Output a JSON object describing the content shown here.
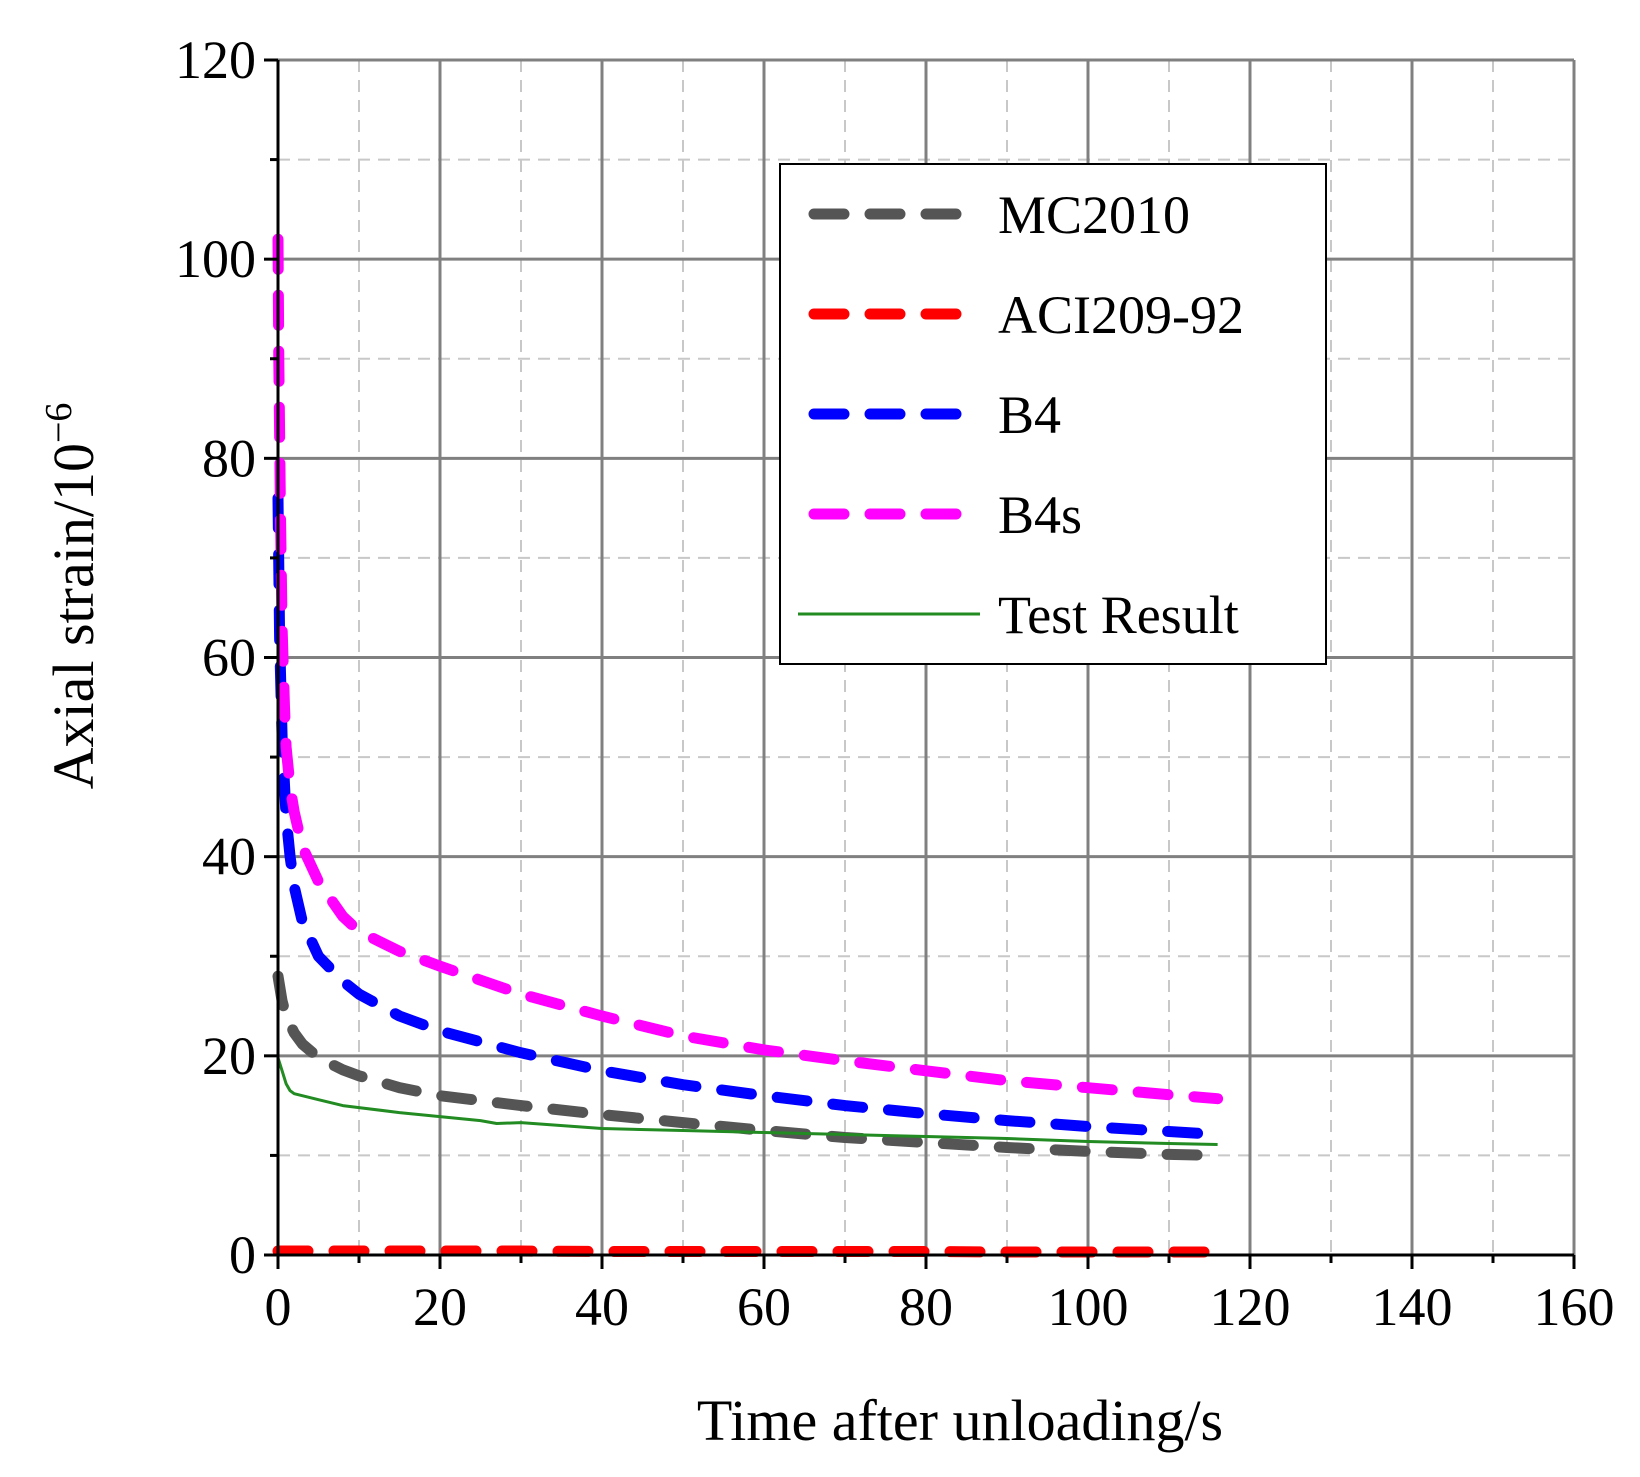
{
  "chart_data": {
    "type": "line",
    "title": "",
    "xlabel": "Time after unloading/s",
    "ylabel_base": "Axial strain/10",
    "ylabel_exp": "−6",
    "xlim": [
      0,
      160
    ],
    "ylim": [
      0,
      120
    ],
    "x_major_ticks": [
      0,
      20,
      40,
      60,
      80,
      100,
      120,
      140,
      160
    ],
    "x_minor_ticks": [
      10,
      30,
      50,
      70,
      90,
      110,
      130,
      150
    ],
    "y_major_ticks": [
      0,
      20,
      40,
      60,
      80,
      100,
      120
    ],
    "y_minor_ticks": [
      10,
      30,
      50,
      70,
      90,
      110
    ],
    "x_tick_labels": [
      "0",
      "20",
      "40",
      "60",
      "80",
      "100",
      "120",
      "140",
      "160"
    ],
    "y_tick_labels": [
      "0",
      "20",
      "40",
      "60",
      "80",
      "100",
      "120"
    ],
    "grid": true,
    "legend_position": "top-right",
    "series": [
      {
        "name": "MC2010",
        "color": "#555555",
        "style": "dashed",
        "x": [
          0,
          0.5,
          1,
          2,
          3,
          5,
          8,
          10,
          15,
          20,
          30,
          40,
          50,
          60,
          70,
          80,
          90,
          100,
          110,
          116
        ],
        "y": [
          28,
          25.5,
          24,
          22.3,
          21.2,
          19.8,
          18.6,
          18,
          16.8,
          16,
          15,
          14.1,
          13.3,
          12.5,
          11.8,
          11.3,
          10.8,
          10.4,
          10.1,
          10
        ]
      },
      {
        "name": "ACI209-92",
        "color": "#ff0000",
        "style": "dashed",
        "x": [
          0,
          10,
          20,
          30,
          40,
          50,
          60,
          70,
          80,
          90,
          100,
          110,
          116
        ],
        "y": [
          0.4,
          0.4,
          0.4,
          0.4,
          0.35,
          0.35,
          0.35,
          0.35,
          0.35,
          0.3,
          0.3,
          0.3,
          0.3
        ]
      },
      {
        "name": "B4",
        "color": "#0000ff",
        "style": "dashed",
        "x": [
          0,
          0.2,
          0.5,
          1,
          1.5,
          2,
          3,
          5,
          8,
          10,
          15,
          20,
          30,
          40,
          50,
          60,
          70,
          80,
          90,
          100,
          110,
          116
        ],
        "y": [
          76,
          62,
          52,
          44,
          40,
          37,
          33.5,
          30,
          27.5,
          26.2,
          24,
          22.5,
          20.3,
          18.5,
          17.1,
          16,
          15,
          14.2,
          13.5,
          12.9,
          12.4,
          12.1
        ]
      },
      {
        "name": "B4s",
        "color": "#ff00ff",
        "style": "dashed",
        "x": [
          0,
          0.1,
          0.3,
          0.5,
          0.8,
          1,
          1.5,
          2,
          3,
          5,
          8,
          10,
          15,
          20,
          30,
          40,
          50,
          60,
          70,
          80,
          90,
          100,
          110,
          116
        ],
        "y": [
          102,
          90,
          75,
          63,
          55,
          51,
          47,
          44.5,
          41,
          37.5,
          34,
          32.5,
          30.5,
          29,
          26.2,
          24,
          22,
          20.6,
          19.5,
          18.5,
          17.5,
          16.8,
          16.1,
          15.7
        ]
      },
      {
        "name": "Test Result",
        "color": "#228B22",
        "style": "solid",
        "x": [
          0,
          0.5,
          1,
          1.5,
          2,
          3,
          5,
          8,
          10,
          15,
          20,
          25,
          27,
          30,
          40,
          50,
          60,
          70,
          80,
          90,
          100,
          110,
          116
        ],
        "y": [
          19.8,
          18.5,
          17.2,
          16.5,
          16.2,
          16.0,
          15.6,
          15.0,
          14.8,
          14.3,
          13.9,
          13.5,
          13.2,
          13.3,
          12.7,
          12.5,
          12.3,
          12.1,
          11.9,
          11.7,
          11.4,
          11.2,
          11.1
        ]
      }
    ]
  }
}
